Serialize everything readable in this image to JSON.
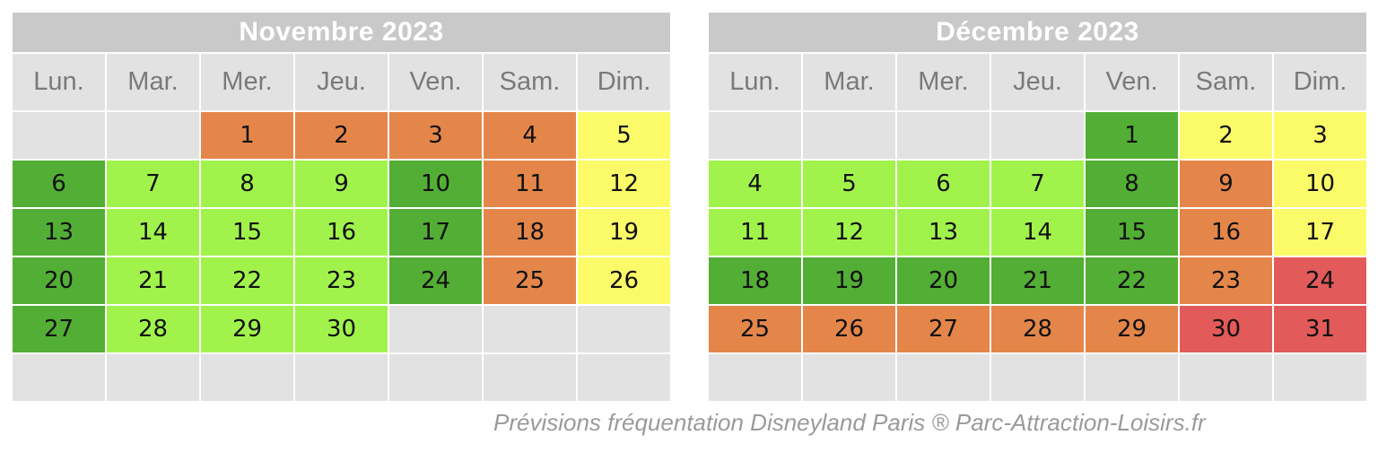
{
  "colors": {
    "dark_green": "#53ae35",
    "light_green": "#a1f34c",
    "orange": "#e4864a",
    "yellow": "#fbfb6a",
    "red": "#e25a5a",
    "empty": "#e2e2e2",
    "header": "#c9c9c9"
  },
  "weekdays": [
    "Lun.",
    "Mar.",
    "Mer.",
    "Jeu.",
    "Ven.",
    "Sam.",
    "Dim."
  ],
  "calendars": [
    {
      "id": "nov",
      "title": "Novembre 2023",
      "weeks": [
        [
          {
            "d": "",
            "c": "empty"
          },
          {
            "d": "",
            "c": "empty"
          },
          {
            "d": "1",
            "c": "orange"
          },
          {
            "d": "2",
            "c": "orange"
          },
          {
            "d": "3",
            "c": "orange"
          },
          {
            "d": "4",
            "c": "orange"
          },
          {
            "d": "5",
            "c": "yellow"
          }
        ],
        [
          {
            "d": "6",
            "c": "dark-green"
          },
          {
            "d": "7",
            "c": "light-green"
          },
          {
            "d": "8",
            "c": "light-green"
          },
          {
            "d": "9",
            "c": "light-green"
          },
          {
            "d": "10",
            "c": "dark-green"
          },
          {
            "d": "11",
            "c": "orange"
          },
          {
            "d": "12",
            "c": "yellow"
          }
        ],
        [
          {
            "d": "13",
            "c": "dark-green"
          },
          {
            "d": "14",
            "c": "light-green"
          },
          {
            "d": "15",
            "c": "light-green"
          },
          {
            "d": "16",
            "c": "light-green"
          },
          {
            "d": "17",
            "c": "dark-green"
          },
          {
            "d": "18",
            "c": "orange"
          },
          {
            "d": "19",
            "c": "yellow"
          }
        ],
        [
          {
            "d": "20",
            "c": "dark-green"
          },
          {
            "d": "21",
            "c": "light-green"
          },
          {
            "d": "22",
            "c": "light-green"
          },
          {
            "d": "23",
            "c": "light-green"
          },
          {
            "d": "24",
            "c": "dark-green"
          },
          {
            "d": "25",
            "c": "orange"
          },
          {
            "d": "26",
            "c": "yellow"
          }
        ],
        [
          {
            "d": "27",
            "c": "dark-green"
          },
          {
            "d": "28",
            "c": "light-green"
          },
          {
            "d": "29",
            "c": "light-green"
          },
          {
            "d": "30",
            "c": "light-green"
          },
          {
            "d": "",
            "c": "empty"
          },
          {
            "d": "",
            "c": "empty"
          },
          {
            "d": "",
            "c": "empty"
          }
        ],
        [
          {
            "d": "",
            "c": "empty"
          },
          {
            "d": "",
            "c": "empty"
          },
          {
            "d": "",
            "c": "empty"
          },
          {
            "d": "",
            "c": "empty"
          },
          {
            "d": "",
            "c": "empty"
          },
          {
            "d": "",
            "c": "empty"
          },
          {
            "d": "",
            "c": "empty"
          }
        ]
      ]
    },
    {
      "id": "dec",
      "title": "Décembre 2023",
      "weeks": [
        [
          {
            "d": "",
            "c": "empty"
          },
          {
            "d": "",
            "c": "empty"
          },
          {
            "d": "",
            "c": "empty"
          },
          {
            "d": "",
            "c": "empty"
          },
          {
            "d": "1",
            "c": "dark-green"
          },
          {
            "d": "2",
            "c": "yellow"
          },
          {
            "d": "3",
            "c": "yellow"
          }
        ],
        [
          {
            "d": "4",
            "c": "light-green"
          },
          {
            "d": "5",
            "c": "light-green"
          },
          {
            "d": "6",
            "c": "light-green"
          },
          {
            "d": "7",
            "c": "light-green"
          },
          {
            "d": "8",
            "c": "dark-green"
          },
          {
            "d": "9",
            "c": "orange"
          },
          {
            "d": "10",
            "c": "yellow"
          }
        ],
        [
          {
            "d": "11",
            "c": "light-green"
          },
          {
            "d": "12",
            "c": "light-green"
          },
          {
            "d": "13",
            "c": "light-green"
          },
          {
            "d": "14",
            "c": "light-green"
          },
          {
            "d": "15",
            "c": "dark-green"
          },
          {
            "d": "16",
            "c": "orange"
          },
          {
            "d": "17",
            "c": "yellow"
          }
        ],
        [
          {
            "d": "18",
            "c": "dark-green"
          },
          {
            "d": "19",
            "c": "dark-green"
          },
          {
            "d": "20",
            "c": "dark-green"
          },
          {
            "d": "21",
            "c": "dark-green"
          },
          {
            "d": "22",
            "c": "dark-green"
          },
          {
            "d": "23",
            "c": "orange"
          },
          {
            "d": "24",
            "c": "red"
          }
        ],
        [
          {
            "d": "25",
            "c": "orange"
          },
          {
            "d": "26",
            "c": "orange"
          },
          {
            "d": "27",
            "c": "orange"
          },
          {
            "d": "28",
            "c": "orange"
          },
          {
            "d": "29",
            "c": "orange"
          },
          {
            "d": "30",
            "c": "red"
          },
          {
            "d": "31",
            "c": "red"
          }
        ],
        [
          {
            "d": "",
            "c": "empty"
          },
          {
            "d": "",
            "c": "empty"
          },
          {
            "d": "",
            "c": "empty"
          },
          {
            "d": "",
            "c": "empty"
          },
          {
            "d": "",
            "c": "empty"
          },
          {
            "d": "",
            "c": "empty"
          },
          {
            "d": "",
            "c": "empty"
          }
        ]
      ]
    }
  ],
  "footer": "Prévisions fréquentation Disneyland Paris  ® Parc-Attraction-Loisirs.fr"
}
